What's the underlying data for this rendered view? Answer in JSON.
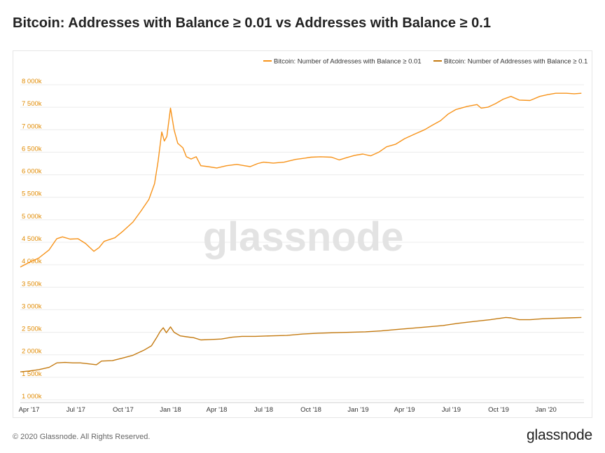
{
  "header": {
    "title": "Bitcoin: Addresses with Balance ≥ 0.01 vs Addresses with Balance ≥ 0.1"
  },
  "footer": {
    "copyright": "© 2020 Glassnode. All Rights Reserved.",
    "brand": "glassnode"
  },
  "watermark": "glassnode",
  "chart_data": {
    "type": "line",
    "title": "Bitcoin: Addresses with Balance ≥ 0.01 vs Addresses with Balance ≥ 0.1",
    "xlabel": "",
    "ylabel": "",
    "ylim": [
      1000000,
      8000000
    ],
    "xlim": [
      "2017-03-15",
      "2020-03-15"
    ],
    "grid": true,
    "legend_position": "top-right",
    "y_ticks": [
      "1 000k",
      "1 500k",
      "2 000k",
      "2 500k",
      "3 000k",
      "3 500k",
      "4 000k",
      "4 500k",
      "5 000k",
      "5 500k",
      "6 000k",
      "6 500k",
      "7 000k",
      "7 500k",
      "8 000k"
    ],
    "y_tick_values": [
      1000000,
      1500000,
      2000000,
      2500000,
      3000000,
      3500000,
      4000000,
      4500000,
      5000000,
      5500000,
      6000000,
      6500000,
      7000000,
      7500000,
      8000000
    ],
    "x_ticks": [
      "Apr '17",
      "Jul '17",
      "Oct '17",
      "Jan '18",
      "Apr '18",
      "Jul '18",
      "Oct '18",
      "Jan '19",
      "Apr '19",
      "Jul '19",
      "Oct '19",
      "Jan '20"
    ],
    "x_tick_dates": [
      "2017-04-01",
      "2017-07-01",
      "2017-10-01",
      "2018-01-01",
      "2018-04-01",
      "2018-07-01",
      "2018-10-01",
      "2019-01-01",
      "2019-04-01",
      "2019-07-01",
      "2019-10-01",
      "2020-01-01"
    ],
    "series": [
      {
        "name": "Bitcoin: Number of Addresses with Balance ≥ 0.01",
        "color": "#f7931a",
        "points": [
          [
            "2017-03-15",
            3950000
          ],
          [
            "2017-04-01",
            4050000
          ],
          [
            "2017-04-20",
            4150000
          ],
          [
            "2017-05-10",
            4330000
          ],
          [
            "2017-05-25",
            4580000
          ],
          [
            "2017-06-05",
            4620000
          ],
          [
            "2017-06-20",
            4570000
          ],
          [
            "2017-07-05",
            4580000
          ],
          [
            "2017-07-20",
            4470000
          ],
          [
            "2017-08-05",
            4300000
          ],
          [
            "2017-08-15",
            4380000
          ],
          [
            "2017-08-25",
            4520000
          ],
          [
            "2017-09-15",
            4600000
          ],
          [
            "2017-10-01",
            4750000
          ],
          [
            "2017-10-20",
            4950000
          ],
          [
            "2017-11-05",
            5200000
          ],
          [
            "2017-11-20",
            5450000
          ],
          [
            "2017-12-01",
            5800000
          ],
          [
            "2017-12-08",
            6300000
          ],
          [
            "2017-12-15",
            6950000
          ],
          [
            "2017-12-20",
            6750000
          ],
          [
            "2017-12-25",
            6850000
          ],
          [
            "2018-01-01",
            7480000
          ],
          [
            "2018-01-08",
            7000000
          ],
          [
            "2018-01-15",
            6700000
          ],
          [
            "2018-01-25",
            6600000
          ],
          [
            "2018-02-01",
            6400000
          ],
          [
            "2018-02-10",
            6350000
          ],
          [
            "2018-02-20",
            6400000
          ],
          [
            "2018-03-01",
            6200000
          ],
          [
            "2018-03-15",
            6180000
          ],
          [
            "2018-04-01",
            6150000
          ],
          [
            "2018-04-20",
            6200000
          ],
          [
            "2018-05-10",
            6230000
          ],
          [
            "2018-05-25",
            6200000
          ],
          [
            "2018-06-05",
            6180000
          ],
          [
            "2018-06-20",
            6250000
          ],
          [
            "2018-07-01",
            6280000
          ],
          [
            "2018-07-20",
            6260000
          ],
          [
            "2018-08-10",
            6280000
          ],
          [
            "2018-09-01",
            6340000
          ],
          [
            "2018-09-20",
            6370000
          ],
          [
            "2018-10-01",
            6390000
          ],
          [
            "2018-10-20",
            6400000
          ],
          [
            "2018-11-10",
            6390000
          ],
          [
            "2018-11-25",
            6330000
          ],
          [
            "2018-12-10",
            6380000
          ],
          [
            "2018-12-25",
            6430000
          ],
          [
            "2019-01-10",
            6460000
          ],
          [
            "2019-01-25",
            6420000
          ],
          [
            "2019-02-10",
            6500000
          ],
          [
            "2019-02-25",
            6620000
          ],
          [
            "2019-03-15",
            6680000
          ],
          [
            "2019-04-01",
            6800000
          ],
          [
            "2019-04-20",
            6900000
          ],
          [
            "2019-05-10",
            7000000
          ],
          [
            "2019-05-25",
            7100000
          ],
          [
            "2019-06-10",
            7200000
          ],
          [
            "2019-06-25",
            7350000
          ],
          [
            "2019-07-10",
            7450000
          ],
          [
            "2019-08-01",
            7520000
          ],
          [
            "2019-08-20",
            7560000
          ],
          [
            "2019-08-28",
            7480000
          ],
          [
            "2019-09-10",
            7500000
          ],
          [
            "2019-09-25",
            7580000
          ],
          [
            "2019-10-10",
            7680000
          ],
          [
            "2019-10-25",
            7740000
          ],
          [
            "2019-11-10",
            7660000
          ],
          [
            "2019-12-01",
            7650000
          ],
          [
            "2019-12-20",
            7740000
          ],
          [
            "2020-01-05",
            7780000
          ],
          [
            "2020-01-20",
            7810000
          ],
          [
            "2020-02-10",
            7810000
          ],
          [
            "2020-02-25",
            7800000
          ],
          [
            "2020-03-10",
            7810000
          ]
        ]
      },
      {
        "name": "Bitcoin: Number of Addresses with Balance ≥ 0.1",
        "color": "#c47a10",
        "points": [
          [
            "2017-03-15",
            1620000
          ],
          [
            "2017-04-01",
            1640000
          ],
          [
            "2017-04-20",
            1670000
          ],
          [
            "2017-05-10",
            1720000
          ],
          [
            "2017-05-25",
            1820000
          ],
          [
            "2017-06-10",
            1830000
          ],
          [
            "2017-06-25",
            1820000
          ],
          [
            "2017-07-10",
            1820000
          ],
          [
            "2017-07-25",
            1800000
          ],
          [
            "2017-08-10",
            1780000
          ],
          [
            "2017-08-20",
            1860000
          ],
          [
            "2017-09-10",
            1870000
          ],
          [
            "2017-10-01",
            1930000
          ],
          [
            "2017-10-20",
            1990000
          ],
          [
            "2017-11-10",
            2100000
          ],
          [
            "2017-11-25",
            2200000
          ],
          [
            "2017-12-05",
            2380000
          ],
          [
            "2017-12-12",
            2520000
          ],
          [
            "2017-12-18",
            2600000
          ],
          [
            "2017-12-24",
            2490000
          ],
          [
            "2018-01-01",
            2620000
          ],
          [
            "2018-01-08",
            2500000
          ],
          [
            "2018-01-20",
            2420000
          ],
          [
            "2018-02-01",
            2400000
          ],
          [
            "2018-02-15",
            2380000
          ],
          [
            "2018-03-01",
            2330000
          ],
          [
            "2018-03-20",
            2340000
          ],
          [
            "2018-04-10",
            2350000
          ],
          [
            "2018-05-01",
            2390000
          ],
          [
            "2018-05-20",
            2410000
          ],
          [
            "2018-06-15",
            2410000
          ],
          [
            "2018-07-15",
            2420000
          ],
          [
            "2018-08-15",
            2430000
          ],
          [
            "2018-09-15",
            2460000
          ],
          [
            "2018-10-15",
            2480000
          ],
          [
            "2018-11-15",
            2490000
          ],
          [
            "2018-12-15",
            2500000
          ],
          [
            "2019-01-15",
            2510000
          ],
          [
            "2019-02-15",
            2530000
          ],
          [
            "2019-03-15",
            2560000
          ],
          [
            "2019-04-15",
            2590000
          ],
          [
            "2019-05-15",
            2620000
          ],
          [
            "2019-06-15",
            2650000
          ],
          [
            "2019-07-15",
            2700000
          ],
          [
            "2019-08-15",
            2740000
          ],
          [
            "2019-09-15",
            2780000
          ],
          [
            "2019-10-15",
            2830000
          ],
          [
            "2019-10-25",
            2820000
          ],
          [
            "2019-11-10",
            2780000
          ],
          [
            "2019-12-01",
            2780000
          ],
          [
            "2019-12-25",
            2800000
          ],
          [
            "2020-01-20",
            2810000
          ],
          [
            "2020-02-15",
            2820000
          ],
          [
            "2020-03-10",
            2830000
          ]
        ]
      }
    ]
  }
}
